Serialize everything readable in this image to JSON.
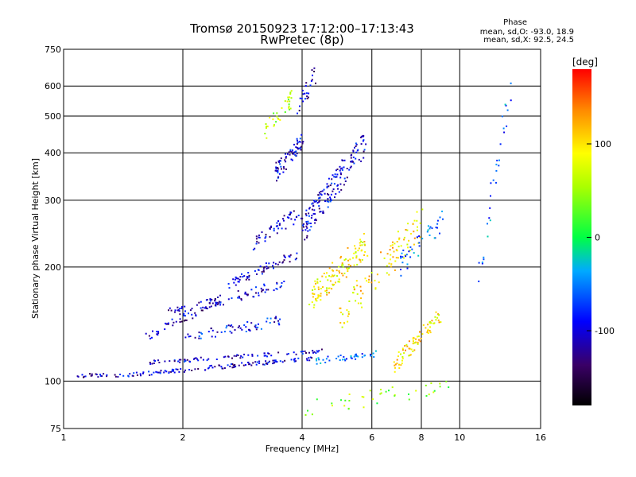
{
  "chart_data": {
    "type": "scatter",
    "title": "Tromsø 20150923 17:12:00–17:13:43",
    "subtitle": "RwPretec (8p)",
    "xlabel": "Frequency [MHz]",
    "ylabel": "Stationary phase Virtual Height [km]",
    "x_scale": "log",
    "y_scale": "log",
    "xlim": [
      1,
      16
    ],
    "ylim": [
      75,
      750
    ],
    "x_ticks": [
      "1",
      "2",
      "4",
      "6",
      "8",
      "10",
      "16"
    ],
    "y_ticks": [
      "75",
      "100",
      "200",
      "300",
      "400",
      "500",
      "600",
      "750"
    ],
    "grid": true,
    "phase_stats": {
      "title": "Phase",
      "line1": "mean, sd,O: -93.0, 18.9",
      "line2": "mean, sd,X:  92.5, 24.5"
    },
    "colorbar": {
      "label": "[deg]",
      "ticks": [
        "100",
        "0",
        "-100"
      ],
      "range": [
        -180,
        180
      ]
    },
    "traces": [
      {
        "x0": 1.05,
        "x1": 1.35,
        "h0": 103,
        "h1": 104,
        "phase": -110,
        "n": 20,
        "spread": 0.012
      },
      {
        "x0": 1.35,
        "x1": 4.3,
        "h0": 103,
        "h1": 115,
        "phase": -105,
        "n": 120,
        "spread": 0.012
      },
      {
        "x0": 1.65,
        "x1": 4.5,
        "h0": 112,
        "h1": 120,
        "phase": -100,
        "n": 80,
        "spread": 0.012
      },
      {
        "x0": 4.3,
        "x1": 6.2,
        "h0": 113,
        "h1": 118,
        "phase": -60,
        "n": 40,
        "spread": 0.02
      },
      {
        "x0": 1.6,
        "x1": 2.5,
        "h0": 130,
        "h1": 165,
        "phase": -110,
        "n": 50,
        "spread": 0.03
      },
      {
        "x0": 1.8,
        "x1": 3.6,
        "h0": 150,
        "h1": 180,
        "phase": -100,
        "n": 80,
        "spread": 0.03
      },
      {
        "x0": 2.0,
        "x1": 3.6,
        "h0": 130,
        "h1": 145,
        "phase": -90,
        "n": 60,
        "spread": 0.03
      },
      {
        "x0": 2.6,
        "x1": 3.9,
        "h0": 180,
        "h1": 215,
        "phase": -105,
        "n": 60,
        "spread": 0.03
      },
      {
        "x0": 3.0,
        "x1": 4.0,
        "h0": 230,
        "h1": 280,
        "phase": -110,
        "n": 50,
        "spread": 0.04
      },
      {
        "x0": 3.4,
        "x1": 4.0,
        "h0": 350,
        "h1": 430,
        "phase": -100,
        "n": 70,
        "spread": 0.05
      },
      {
        "x0": 3.2,
        "x1": 3.8,
        "h0": 450,
        "h1": 560,
        "phase": 60,
        "n": 35,
        "spread": 0.06
      },
      {
        "x0": 3.9,
        "x1": 4.3,
        "h0": 520,
        "h1": 640,
        "phase": -110,
        "n": 25,
        "spread": 0.06
      },
      {
        "x0": 4.0,
        "x1": 5.8,
        "h0": 250,
        "h1": 430,
        "phase": -100,
        "n": 160,
        "spread": 0.08
      },
      {
        "x0": 4.2,
        "x1": 5.8,
        "h0": 165,
        "h1": 230,
        "phase": 90,
        "n": 120,
        "spread": 0.08
      },
      {
        "x0": 5.0,
        "x1": 8.0,
        "h0": 150,
        "h1": 260,
        "phase": 100,
        "n": 100,
        "spread": 0.1
      },
      {
        "x0": 6.8,
        "x1": 9.0,
        "h0": 110,
        "h1": 150,
        "phase": 100,
        "n": 80,
        "spread": 0.05
      },
      {
        "x0": 7.0,
        "x1": 9.2,
        "h0": 200,
        "h1": 270,
        "phase": -60,
        "n": 40,
        "spread": 0.06
      },
      {
        "x0": 4.0,
        "x1": 9.5,
        "h0": 85,
        "h1": 97,
        "phase": 40,
        "n": 40,
        "spread": 0.05
      },
      {
        "x0": 11.0,
        "x1": 13.5,
        "h0": 170,
        "h1": 620,
        "phase": -60,
        "n": 30,
        "spread": 0.08
      }
    ]
  }
}
